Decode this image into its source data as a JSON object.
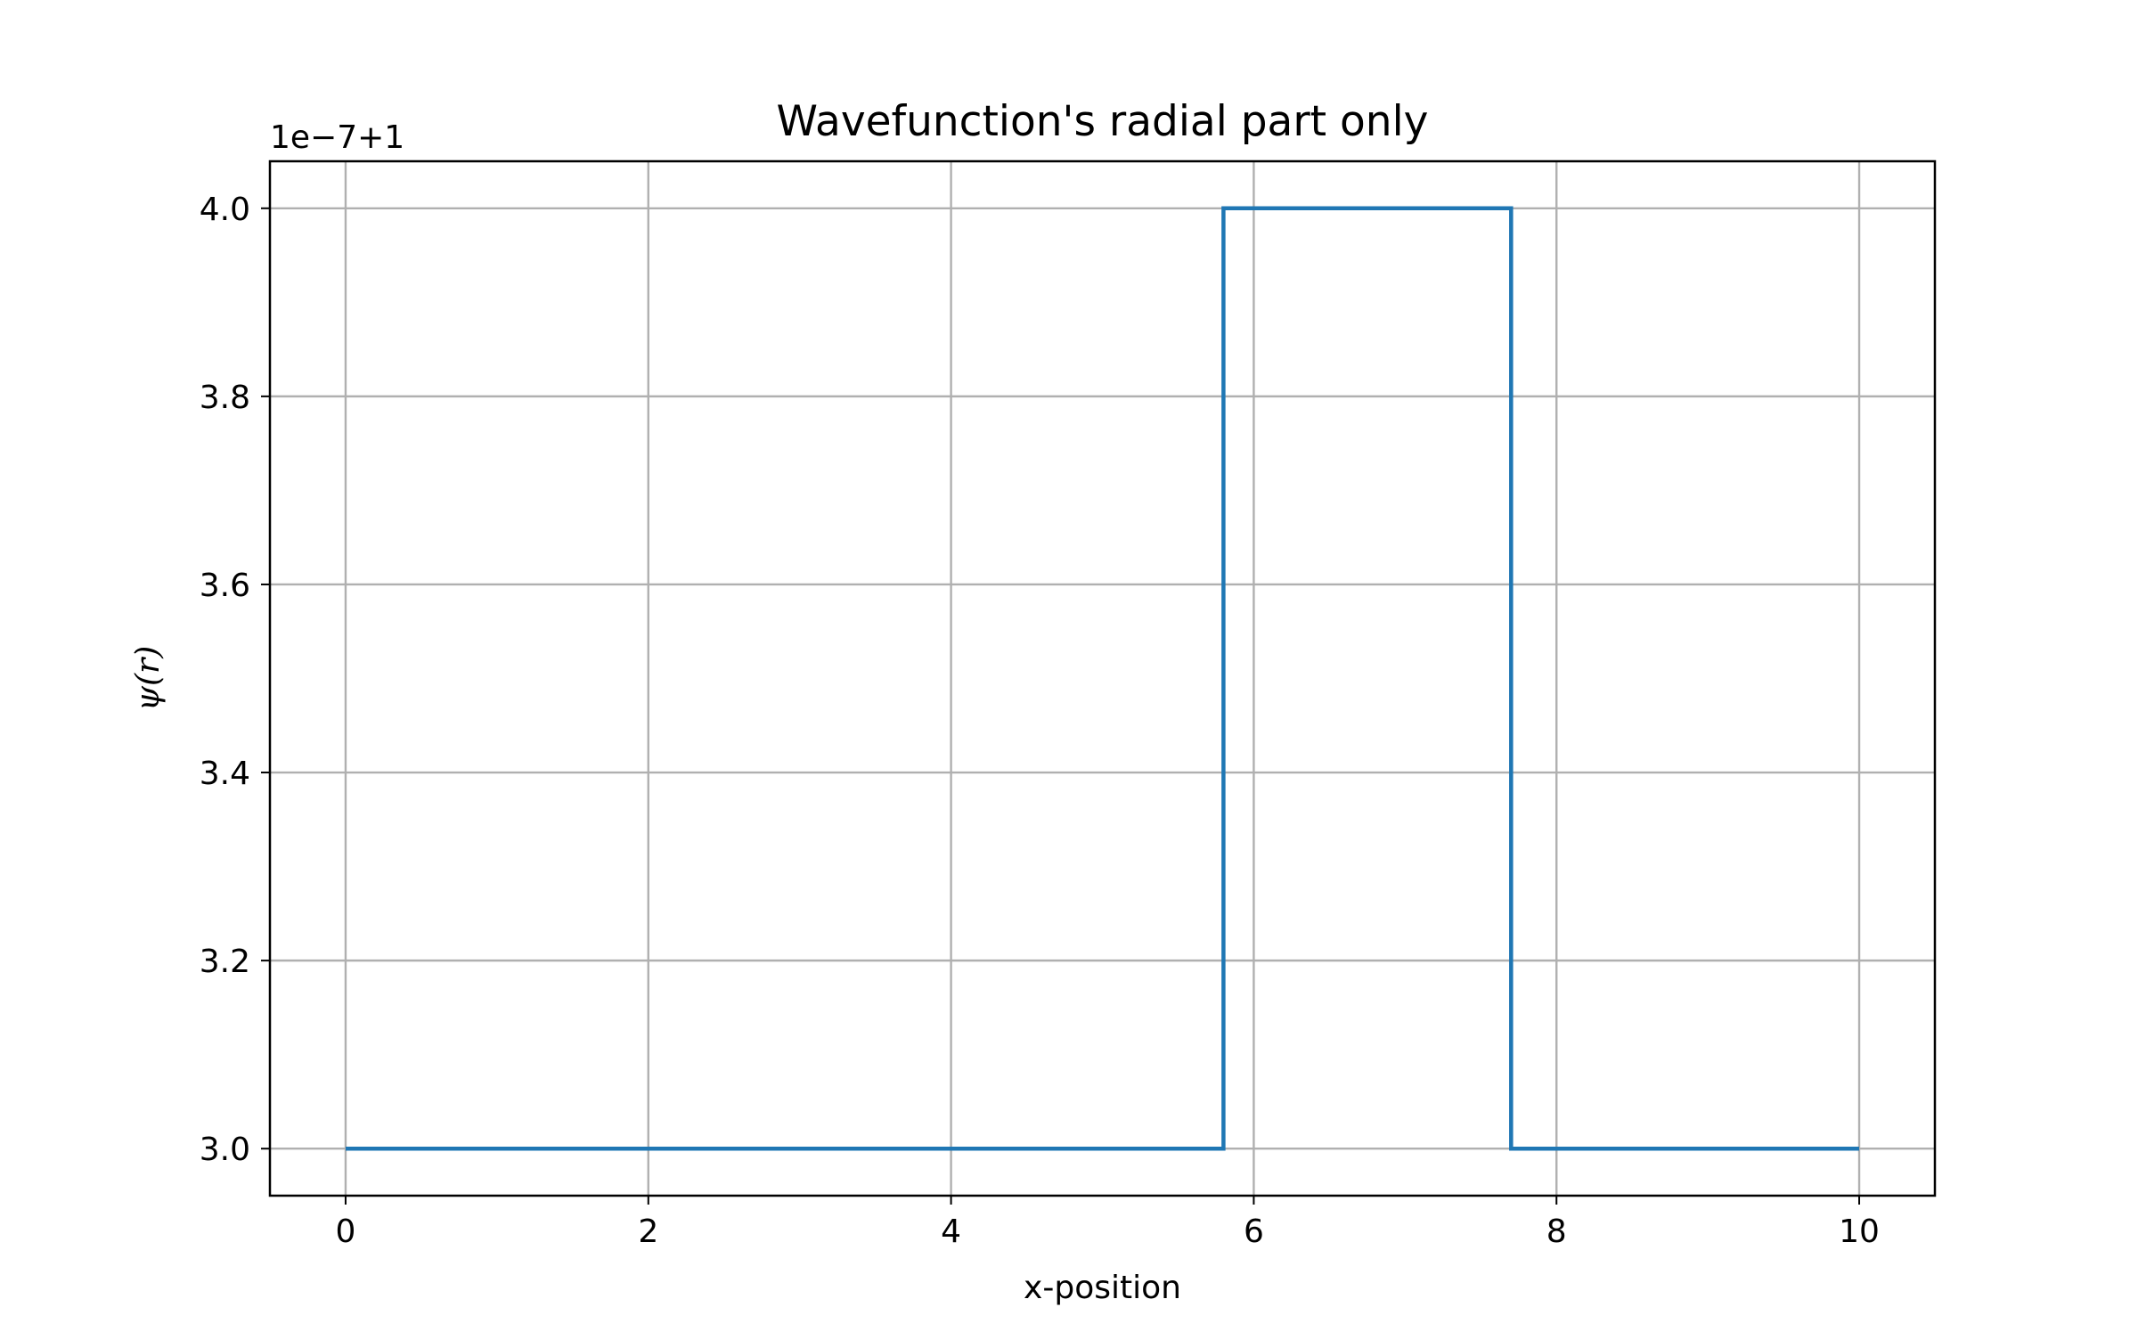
{
  "chart_data": {
    "type": "line",
    "title": "Wavefunction's radial part only",
    "xlabel": "x-position",
    "ylabel": "ψ(r)",
    "y_offset_text": "1e−7+1",
    "xlim": [
      -0.5,
      10.5
    ],
    "ylim": [
      2.95,
      4.05
    ],
    "xticks": [
      0,
      2,
      4,
      6,
      8,
      10
    ],
    "xtick_labels": [
      "0",
      "2",
      "4",
      "6",
      "8",
      "10"
    ],
    "yticks": [
      3.0,
      3.2,
      3.4,
      3.6,
      3.8,
      4.0
    ],
    "ytick_labels": [
      "3.0",
      "3.2",
      "3.4",
      "3.6",
      "3.8",
      "4.0"
    ],
    "grid": true,
    "series": [
      {
        "color": "#1f77b4",
        "x": [
          0,
          5.8,
          5.8,
          7.7,
          7.7,
          10
        ],
        "y": [
          3.0,
          3.0,
          4.0,
          4.0,
          3.0,
          3.0
        ]
      }
    ]
  }
}
